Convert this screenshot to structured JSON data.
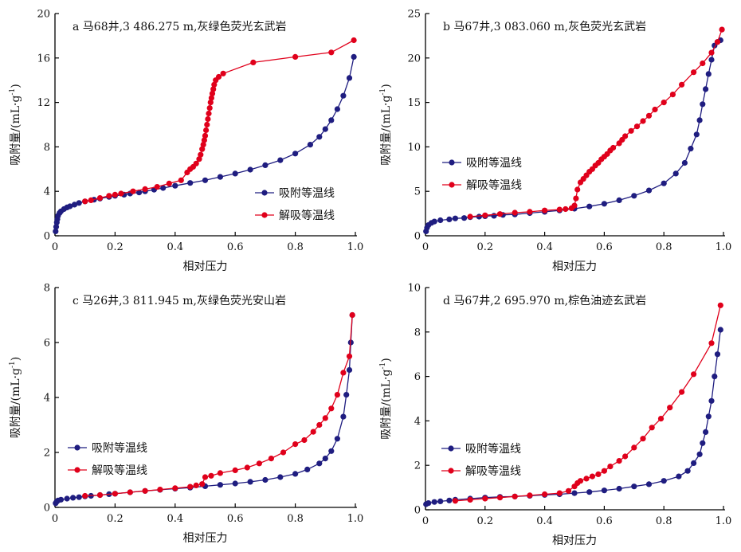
{
  "colors": {
    "adsorption": "#1f1d80",
    "desorption": "#e0001b",
    "axis": "#000000"
  },
  "legend": {
    "adsorption": "吸附等温线",
    "desorption": "解吸等温线"
  },
  "chart_data": [
    {
      "type": "line",
      "title": "a 马68井,3 486.275 m,灰绿色荧光玄武岩",
      "xlabel": "相对压力",
      "ylabel": "吸附量/(mL·g⁻¹)",
      "ylabel_main": "吸附量/(mL·g",
      "ylabel_sup": "-1",
      "ylabel_tail": ")",
      "xlim": [
        0,
        1.0
      ],
      "ylim": [
        0,
        20
      ],
      "xticks": [
        "0",
        "0.2",
        "0.4",
        "0.6",
        "0.8",
        "1.0"
      ],
      "yticks": [
        "0",
        "4",
        "8",
        "12",
        "16",
        "20"
      ],
      "legend_position": "bottom-right",
      "series": [
        {
          "name": "吸附等温线",
          "x": [
            0.002,
            0.004,
            0.006,
            0.008,
            0.01,
            0.015,
            0.02,
            0.03,
            0.04,
            0.05,
            0.065,
            0.08,
            0.1,
            0.13,
            0.15,
            0.18,
            0.2,
            0.23,
            0.25,
            0.28,
            0.3,
            0.33,
            0.36,
            0.4,
            0.45,
            0.5,
            0.55,
            0.6,
            0.65,
            0.7,
            0.75,
            0.8,
            0.85,
            0.88,
            0.9,
            0.92,
            0.94,
            0.96,
            0.98,
            0.995
          ],
          "y": [
            0.4,
            0.8,
            1.2,
            1.5,
            1.8,
            2.05,
            2.2,
            2.4,
            2.55,
            2.65,
            2.8,
            2.95,
            3.1,
            3.25,
            3.35,
            3.5,
            3.6,
            3.7,
            3.8,
            3.9,
            4.0,
            4.15,
            4.3,
            4.5,
            4.75,
            5.0,
            5.3,
            5.6,
            5.95,
            6.35,
            6.8,
            7.4,
            8.2,
            8.9,
            9.6,
            10.4,
            11.4,
            12.6,
            14.2,
            16.1
          ]
        },
        {
          "name": "解吸等温线",
          "x": [
            0.995,
            0.92,
            0.8,
            0.66,
            0.56,
            0.545,
            0.535,
            0.53,
            0.527,
            0.524,
            0.521,
            0.518,
            0.515,
            0.512,
            0.509,
            0.506,
            0.503,
            0.5,
            0.497,
            0.494,
            0.49,
            0.485,
            0.48,
            0.47,
            0.46,
            0.45,
            0.44,
            0.42,
            0.38,
            0.34,
            0.3,
            0.26,
            0.22,
            0.2,
            0.18,
            0.15,
            0.12,
            0.1
          ],
          "y": [
            17.6,
            16.5,
            16.1,
            15.6,
            14.6,
            14.3,
            14.0,
            13.6,
            13.2,
            12.8,
            12.4,
            12.0,
            11.5,
            11.0,
            10.5,
            10.0,
            9.5,
            9.0,
            8.6,
            8.2,
            7.8,
            7.3,
            6.9,
            6.5,
            6.2,
            6.0,
            5.7,
            5.0,
            4.7,
            4.4,
            4.2,
            4.0,
            3.8,
            3.7,
            3.6,
            3.4,
            3.2,
            3.1
          ]
        }
      ]
    },
    {
      "type": "line",
      "title": "b 马67井,3 083.060 m,灰色荧光玄武岩",
      "xlabel": "相对压力",
      "ylabel": "吸附量/(mL·g⁻¹)",
      "ylabel_main": "吸附量/(mL·g",
      "ylabel_sup": "-1",
      "ylabel_tail": ")",
      "xlim": [
        0,
        1.0
      ],
      "ylim": [
        0,
        25
      ],
      "xticks": [
        "0",
        "0.2",
        "0.4",
        "0.6",
        "0.8",
        "1.0"
      ],
      "yticks": [
        "0",
        "5",
        "10",
        "15",
        "20",
        "25"
      ],
      "legend_position": "middle-left",
      "series": [
        {
          "name": "吸附等温线",
          "x": [
            0.002,
            0.005,
            0.01,
            0.02,
            0.03,
            0.05,
            0.08,
            0.1,
            0.13,
            0.15,
            0.18,
            0.2,
            0.23,
            0.26,
            0.3,
            0.35,
            0.4,
            0.45,
            0.5,
            0.55,
            0.6,
            0.65,
            0.7,
            0.75,
            0.8,
            0.84,
            0.87,
            0.89,
            0.91,
            0.92,
            0.93,
            0.94,
            0.95,
            0.96,
            0.97,
            0.98,
            0.99
          ],
          "y": [
            0.5,
            0.9,
            1.2,
            1.45,
            1.6,
            1.75,
            1.85,
            1.95,
            2.0,
            2.1,
            2.15,
            2.2,
            2.25,
            2.35,
            2.4,
            2.55,
            2.7,
            2.85,
            3.05,
            3.3,
            3.6,
            4.0,
            4.5,
            5.1,
            5.9,
            7.0,
            8.2,
            9.8,
            11.4,
            13.0,
            14.8,
            16.5,
            18.2,
            19.8,
            21.4,
            21.8,
            22.0
          ]
        },
        {
          "name": "解吸等温线",
          "x": [
            0.995,
            0.98,
            0.96,
            0.93,
            0.9,
            0.86,
            0.83,
            0.8,
            0.77,
            0.75,
            0.73,
            0.71,
            0.69,
            0.67,
            0.66,
            0.65,
            0.63,
            0.62,
            0.61,
            0.6,
            0.59,
            0.58,
            0.57,
            0.56,
            0.55,
            0.54,
            0.53,
            0.52,
            0.51,
            0.505,
            0.5,
            0.49,
            0.47,
            0.45,
            0.4,
            0.35,
            0.3,
            0.25,
            0.2,
            0.15
          ],
          "y": [
            23.2,
            21.8,
            20.6,
            19.4,
            18.4,
            17.0,
            15.9,
            15.0,
            14.2,
            13.5,
            12.9,
            12.3,
            11.8,
            11.2,
            10.8,
            10.4,
            9.9,
            9.6,
            9.2,
            8.9,
            8.6,
            8.2,
            7.9,
            7.5,
            7.2,
            6.8,
            6.4,
            6.0,
            5.2,
            4.2,
            3.4,
            3.1,
            3.0,
            2.95,
            2.85,
            2.7,
            2.6,
            2.45,
            2.3,
            2.15
          ]
        }
      ]
    },
    {
      "type": "line",
      "title": "c 马26井,3 811.945 m,灰绿色荧光安山岩",
      "xlabel": "相对压力",
      "ylabel": "吸附量/(mL·g⁻¹)",
      "ylabel_main": "吸附量/(mL·g",
      "ylabel_sup": "-1",
      "ylabel_tail": ")",
      "xlim": [
        0,
        1.0
      ],
      "ylim": [
        0,
        8
      ],
      "xticks": [
        "0",
        "0.2",
        "0.4",
        "0.6",
        "0.8",
        "1.0"
      ],
      "yticks": [
        "0",
        "2",
        "4",
        "6",
        "8"
      ],
      "legend_position": "bottom-left",
      "series": [
        {
          "name": "吸附等温线",
          "x": [
            0.002,
            0.005,
            0.01,
            0.02,
            0.04,
            0.06,
            0.08,
            0.1,
            0.12,
            0.15,
            0.18,
            0.2,
            0.25,
            0.3,
            0.35,
            0.4,
            0.45,
            0.5,
            0.55,
            0.6,
            0.65,
            0.7,
            0.75,
            0.8,
            0.84,
            0.88,
            0.9,
            0.92,
            0.94,
            0.96,
            0.97,
            0.98,
            0.985,
            0.99
          ],
          "y": [
            0.15,
            0.2,
            0.25,
            0.28,
            0.32,
            0.35,
            0.37,
            0.4,
            0.42,
            0.45,
            0.48,
            0.5,
            0.55,
            0.6,
            0.64,
            0.68,
            0.72,
            0.77,
            0.82,
            0.87,
            0.93,
            1.0,
            1.1,
            1.22,
            1.38,
            1.6,
            1.78,
            2.05,
            2.5,
            3.3,
            4.1,
            5.0,
            6.0,
            7.0
          ]
        },
        {
          "name": "解吸等温线",
          "x": [
            0.99,
            0.98,
            0.96,
            0.94,
            0.92,
            0.9,
            0.88,
            0.86,
            0.83,
            0.8,
            0.76,
            0.72,
            0.68,
            0.64,
            0.6,
            0.55,
            0.52,
            0.5,
            0.49,
            0.47,
            0.45,
            0.4,
            0.35,
            0.3,
            0.25,
            0.2,
            0.15,
            0.1
          ],
          "y": [
            7.0,
            5.5,
            4.9,
            4.1,
            3.6,
            3.25,
            3.0,
            2.75,
            2.45,
            2.3,
            2.0,
            1.78,
            1.6,
            1.45,
            1.35,
            1.25,
            1.15,
            1.1,
            0.85,
            0.8,
            0.75,
            0.7,
            0.65,
            0.6,
            0.55,
            0.5,
            0.45,
            0.42
          ]
        }
      ]
    },
    {
      "type": "line",
      "title": "d 马67井,2 695.970 m,棕色油迹玄武岩",
      "xlabel": "相对压力",
      "ylabel": "吸附量/(mL·g⁻¹)",
      "ylabel_main": "吸附量/(mL·g",
      "ylabel_sup": "-1",
      "ylabel_tail": ")",
      "xlim": [
        0,
        1.0
      ],
      "ylim": [
        0,
        10
      ],
      "xticks": [
        "0",
        "0.2",
        "0.4",
        "0.6",
        "0.8",
        "1.0"
      ],
      "yticks": [
        "0",
        "2",
        "4",
        "6",
        "8",
        "10"
      ],
      "legend_position": "bottom-left",
      "series": [
        {
          "name": "吸附等温线",
          "x": [
            0.002,
            0.01,
            0.03,
            0.05,
            0.08,
            0.1,
            0.15,
            0.2,
            0.25,
            0.3,
            0.35,
            0.4,
            0.45,
            0.5,
            0.55,
            0.6,
            0.65,
            0.7,
            0.75,
            0.8,
            0.85,
            0.88,
            0.9,
            0.92,
            0.93,
            0.94,
            0.95,
            0.96,
            0.97,
            0.98,
            0.99
          ],
          "y": [
            0.25,
            0.3,
            0.35,
            0.38,
            0.42,
            0.45,
            0.5,
            0.55,
            0.58,
            0.6,
            0.63,
            0.67,
            0.7,
            0.75,
            0.8,
            0.87,
            0.95,
            1.05,
            1.15,
            1.3,
            1.5,
            1.75,
            2.1,
            2.5,
            3.0,
            3.5,
            4.2,
            4.9,
            6.0,
            7.0,
            8.1
          ]
        },
        {
          "name": "解吸等温线",
          "x": [
            0.99,
            0.96,
            0.9,
            0.86,
            0.82,
            0.79,
            0.76,
            0.73,
            0.7,
            0.67,
            0.65,
            0.62,
            0.6,
            0.58,
            0.56,
            0.54,
            0.52,
            0.51,
            0.5,
            0.48,
            0.45,
            0.4,
            0.35,
            0.3,
            0.25,
            0.2,
            0.15,
            0.1
          ],
          "y": [
            9.2,
            7.5,
            6.1,
            5.3,
            4.6,
            4.1,
            3.7,
            3.2,
            2.8,
            2.4,
            2.2,
            1.95,
            1.75,
            1.6,
            1.5,
            1.4,
            1.3,
            1.2,
            1.05,
            0.85,
            0.75,
            0.7,
            0.65,
            0.6,
            0.55,
            0.5,
            0.45,
            0.4
          ]
        }
      ]
    }
  ]
}
